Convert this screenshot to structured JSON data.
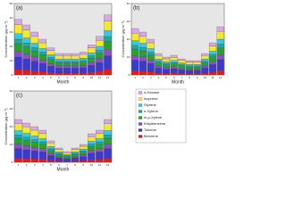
{
  "chart_data": [
    {
      "type": "bar",
      "stacked": true,
      "panel": "(a)",
      "xlabel": "Month",
      "ylabel": "Concentration (µg m⁻³)",
      "categories": [
        1,
        2,
        3,
        4,
        5,
        6,
        7,
        8,
        9,
        10,
        11,
        12
      ],
      "ylim": [
        0,
        50
      ],
      "yticks": [
        0,
        10,
        20,
        30,
        40,
        50
      ],
      "series": [
        {
          "name": "Benzene",
          "color": "#e41a1c",
          "values": [
            3.9,
            3.5,
            3,
            2.5,
            1.9,
            1.5,
            1.5,
            1.5,
            1.6,
            2.1,
            2.7,
            4.2
          ]
        },
        {
          "name": "Toluene",
          "color": "#3a3ad0",
          "values": [
            8.6,
            7.7,
            6.6,
            5.5,
            4.2,
            3.3,
            3.3,
            3.3,
            3.5,
            4.6,
            5.9,
            9.2
          ]
        },
        {
          "name": "Ethylbenzene",
          "color": "#8a4fc9",
          "values": [
            3.9,
            3.5,
            3,
            2.5,
            1.9,
            1.5,
            1.5,
            1.5,
            1.6,
            2.1,
            2.7,
            4.2
          ]
        },
        {
          "name": "m,p-Xylene",
          "color": "#2ca02c",
          "values": [
            5.5,
            4.9,
            4.2,
            3.5,
            2.7,
            2.1,
            2.1,
            2.1,
            2.2,
            2.9,
            3.8,
            5.9
          ]
        },
        {
          "name": "o-Xylene",
          "color": "#1fa99a",
          "values": [
            3.1,
            2.8,
            2.4,
            2,
            1.5,
            1.2,
            1.2,
            1.2,
            1.3,
            1.7,
            2.2,
            3.4
          ]
        },
        {
          "name": "Styrene",
          "color": "#35c9e6",
          "values": [
            3.9,
            3.5,
            3,
            2.5,
            1.9,
            1.5,
            1.5,
            1.5,
            1.6,
            2.1,
            2.7,
            4.2
          ]
        },
        {
          "name": "Isoprene",
          "color": "#f2e830",
          "values": [
            6.2,
            5.6,
            4.8,
            4,
            3,
            2.4,
            2.4,
            2.4,
            2.6,
            3.4,
            4.3,
            6.7
          ]
        },
        {
          "name": "n-Hexane",
          "color": "#d9a6e6",
          "values": [
            3.9,
            3.5,
            3,
            2.5,
            1.9,
            1.5,
            1.5,
            1.5,
            1.6,
            2.1,
            2.7,
            4.2
          ]
        }
      ]
    },
    {
      "type": "bar",
      "stacked": true,
      "panel": "(b)",
      "xlabel": "Month",
      "ylabel": "Concentration (µg m⁻³)",
      "categories": [
        1,
        2,
        3,
        4,
        5,
        6,
        7,
        8,
        9,
        10,
        11,
        12
      ],
      "ylim": [
        0,
        40
      ],
      "yticks": [
        0,
        10,
        20,
        30,
        40
      ],
      "series": [
        {
          "name": "Benzene",
          "color": "#e41a1c",
          "values": [
            2.6,
            2.4,
            2,
            1.2,
            1,
            1.1,
            0.9,
            0.8,
            0.8,
            1.2,
            1.8,
            2.7
          ]
        },
        {
          "name": "Toluene",
          "color": "#3a3ad0",
          "values": [
            5.7,
            5.3,
            4.4,
            2.6,
            2.2,
            2.4,
            2,
            1.8,
            1.8,
            2.6,
            4,
            5.9
          ]
        },
        {
          "name": "Ethylbenzene",
          "color": "#8a4fc9",
          "values": [
            2.6,
            2.4,
            2,
            1.2,
            1,
            1.1,
            0.9,
            0.8,
            0.8,
            1.2,
            1.8,
            2.7
          ]
        },
        {
          "name": "m,p-Xylene",
          "color": "#2ca02c",
          "values": [
            3.6,
            3.4,
            2.8,
            1.7,
            1.4,
            1.5,
            1.3,
            1.1,
            1.1,
            1.7,
            2.5,
            3.8
          ]
        },
        {
          "name": "o-Xylene",
          "color": "#1fa99a",
          "values": [
            2.1,
            1.9,
            1.6,
            1,
            0.8,
            0.9,
            0.7,
            0.6,
            0.6,
            1,
            1.4,
            2.2
          ]
        },
        {
          "name": "Styrene",
          "color": "#35c9e6",
          "values": [
            2.6,
            2.4,
            2,
            1.2,
            1,
            1.1,
            0.9,
            0.8,
            0.8,
            1.2,
            1.8,
            2.7
          ]
        },
        {
          "name": "Isoprene",
          "color": "#f2e830",
          "values": [
            4.2,
            3.8,
            3.2,
            1.9,
            1.6,
            1.8,
            1.4,
            1.3,
            1.3,
            1.9,
            2.9,
            4.3
          ]
        },
        {
          "name": "n-Hexane",
          "color": "#d9a6e6",
          "values": [
            2.6,
            2.4,
            2,
            1.2,
            1,
            1.1,
            0.9,
            0.8,
            0.8,
            1.2,
            1.8,
            2.7
          ]
        }
      ]
    },
    {
      "type": "bar",
      "stacked": true,
      "panel": "(c)",
      "xlabel": "Month",
      "ylabel": "Concentration (µg m⁻³)",
      "categories": [
        1,
        2,
        3,
        4,
        5,
        6,
        7,
        8,
        9,
        10,
        11,
        12
      ],
      "ylim": [
        0,
        40
      ],
      "yticks": [
        0,
        10,
        20,
        30,
        40
      ],
      "series": [
        {
          "name": "Benzene",
          "color": "#e41a1c",
          "values": [
            2.4,
            2.2,
            2,
            1.8,
            1.2,
            0.8,
            0.6,
            0.8,
            1,
            1.6,
            1.8,
            2.4
          ]
        },
        {
          "name": "Toluene",
          "color": "#3a3ad0",
          "values": [
            5.3,
            4.8,
            4.4,
            4,
            2.6,
            1.8,
            1.3,
            1.8,
            2.2,
            3.5,
            4,
            5.3
          ]
        },
        {
          "name": "Ethylbenzene",
          "color": "#8a4fc9",
          "values": [
            2.4,
            2.2,
            2,
            1.8,
            1.2,
            0.8,
            0.6,
            0.8,
            1,
            1.6,
            1.8,
            2.4
          ]
        },
        {
          "name": "m,p-Xylene",
          "color": "#2ca02c",
          "values": [
            3.4,
            3.1,
            2.8,
            2.5,
            1.7,
            1.1,
            0.8,
            1.1,
            1.4,
            2.2,
            2.5,
            3.4
          ]
        },
        {
          "name": "o-Xylene",
          "color": "#1fa99a",
          "values": [
            1.9,
            1.8,
            1.6,
            1.4,
            1,
            0.6,
            0.5,
            0.6,
            0.8,
            1.3,
            1.4,
            1.9
          ]
        },
        {
          "name": "Styrene",
          "color": "#35c9e6",
          "values": [
            2.4,
            2.2,
            2,
            1.8,
            1.2,
            0.8,
            0.6,
            0.8,
            1,
            1.6,
            1.8,
            2.4
          ]
        },
        {
          "name": "Isoprene",
          "color": "#f2e830",
          "values": [
            3.8,
            3.5,
            3.2,
            2.9,
            1.9,
            1.3,
            1,
            1.3,
            1.6,
            2.6,
            2.9,
            3.8
          ]
        },
        {
          "name": "n-Hexane",
          "color": "#d9a6e6",
          "values": [
            2.4,
            2.2,
            2,
            1.8,
            1.2,
            0.8,
            0.6,
            0.8,
            1,
            1.6,
            1.8,
            2.4
          ]
        }
      ]
    }
  ]
}
